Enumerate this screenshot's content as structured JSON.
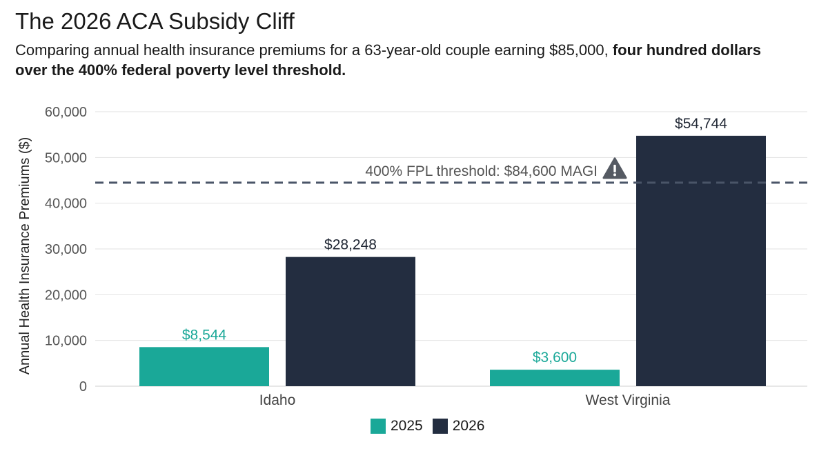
{
  "chart_data": {
    "type": "bar",
    "title": "The 2026 ACA Subsidy Cliff",
    "subtitle_plain": "Comparing annual health insurance premiums for a 63-year-old couple earning $85,000, ",
    "subtitle_bold": "four hundred dollars over the 400% federal poverty level threshold.",
    "categories": [
      "Idaho",
      "West Virginia"
    ],
    "series": [
      {
        "name": "2025",
        "color": "#1aa898",
        "values": [
          8544,
          3600
        ],
        "labels": [
          "$8,544",
          "$3,600"
        ]
      },
      {
        "name": "2026",
        "color": "#232d40",
        "values": [
          28248,
          54744
        ],
        "labels": [
          "$28,248",
          "$54,744"
        ]
      }
    ],
    "xlabel": "",
    "ylabel": "Annual Health Insurance Premiums ($)",
    "ylim": [
      0,
      60000
    ],
    "yticks": [
      0,
      10000,
      20000,
      30000,
      40000,
      50000,
      60000
    ],
    "ytick_labels": [
      "0",
      "10,000",
      "20,000",
      "30,000",
      "40,000",
      "50,000",
      "60,000"
    ],
    "grid": "horizontal",
    "legend_position": "bottom-center",
    "annotation": {
      "text": "400% FPL threshold: $84,600 MAGI",
      "icon": "warning-icon",
      "line_style": "dashed",
      "line_color": "#4a5568",
      "y_value": 44500
    }
  }
}
